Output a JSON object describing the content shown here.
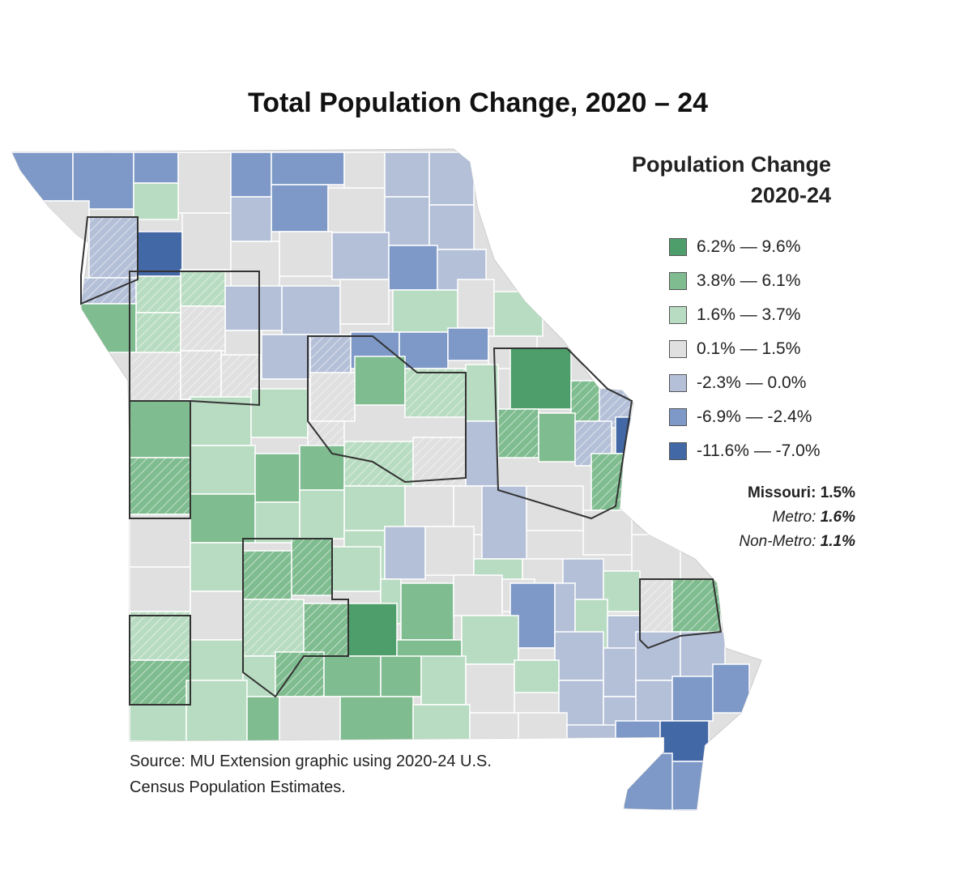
{
  "title": "Total Population Change, 2020 – 24",
  "legend": {
    "title_line1": "Population Change",
    "title_line2": "2020-24",
    "classes": [
      {
        "label": "6.2% — 9.6%",
        "color": "#4e9e6c"
      },
      {
        "label": "3.8% — 6.1%",
        "color": "#7fbc8f"
      },
      {
        "label": "1.6% — 3.7%",
        "color": "#b8dcc1"
      },
      {
        "label": "0.1% — 1.5%",
        "color": "#e0e0e0"
      },
      {
        "label": "-2.3% — 0.0%",
        "color": "#b4c0d8"
      },
      {
        "label": "-6.9% — -2.4%",
        "color": "#7e99c8"
      },
      {
        "label": "-11.6% — -7.0%",
        "color": "#4268a6"
      }
    ]
  },
  "stats": {
    "missouri_label": "Missouri:",
    "missouri_value": "1.5%",
    "metro_label": "Metro:",
    "metro_value": "1.6%",
    "nonmetro_label": "Non-Metro:",
    "nonmetro_value": "1.1%"
  },
  "source_line1": "Source: MU Extension graphic using 2020-24 U.S.",
  "source_line2": "Census Population Estimates.",
  "colors": {
    "metro_outline": "#333333",
    "county_border": "#ffffff",
    "state_background": "#e0e0e0"
  }
}
